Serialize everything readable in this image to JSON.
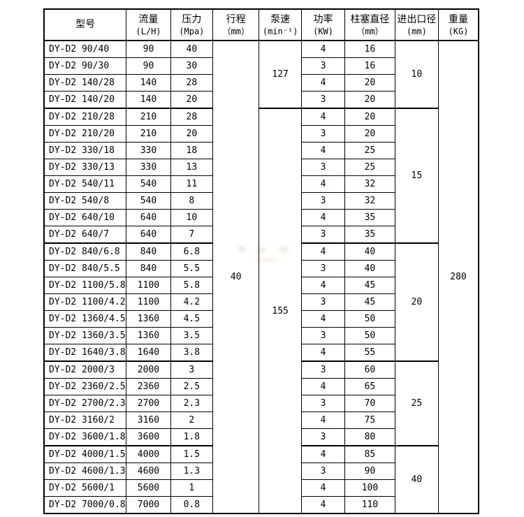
{
  "table": {
    "headers": [
      {
        "title": "型号",
        "unit": ""
      },
      {
        "title": "流量",
        "unit": "(L/H)"
      },
      {
        "title": "压力",
        "unit": "(Mpa)"
      },
      {
        "title": "行程",
        "unit": "（mm）"
      },
      {
        "title": "泵速",
        "unit": "(min⁻¹)"
      },
      {
        "title": "功率",
        "unit": "(KW)"
      },
      {
        "title": "柱塞直径",
        "unit": "（mm）"
      },
      {
        "title": "进出口径",
        "unit": "(mm)"
      },
      {
        "title": "重量",
        "unit": "(KG)"
      }
    ],
    "stroke": {
      "value": "40",
      "rows": 28
    },
    "weight": {
      "value": "280",
      "rows": 28
    },
    "speed_groups": [
      {
        "value": "127",
        "start": 0,
        "rows": 4
      },
      {
        "value": "155",
        "start": 4,
        "rows": 24
      }
    ],
    "port_groups": [
      {
        "value": "10",
        "start": 0,
        "rows": 4
      },
      {
        "value": "15",
        "start": 4,
        "rows": 8
      },
      {
        "value": "20",
        "start": 12,
        "rows": 7
      },
      {
        "value": "25",
        "start": 19,
        "rows": 5
      },
      {
        "value": "40",
        "start": 24,
        "rows": 4
      }
    ],
    "rows": [
      {
        "model": "DY-D2 90/40",
        "flow": "90",
        "pressure": "40",
        "power": "4",
        "plunger": "16"
      },
      {
        "model": "DY-D2 90/30",
        "flow": "90",
        "pressure": "30",
        "power": "3",
        "plunger": "16"
      },
      {
        "model": "DY-D2 140/28",
        "flow": "140",
        "pressure": "28",
        "power": "4",
        "plunger": "20"
      },
      {
        "model": "DY-D2 140/20",
        "flow": "140",
        "pressure": "20",
        "power": "3",
        "plunger": "20"
      },
      {
        "model": "DY-D2 210/28",
        "flow": "210",
        "pressure": "28",
        "power": "4",
        "plunger": "20"
      },
      {
        "model": "DY-D2 210/20",
        "flow": "210",
        "pressure": "20",
        "power": "3",
        "plunger": "20"
      },
      {
        "model": "DY-D2 330/18",
        "flow": "330",
        "pressure": "18",
        "power": "4",
        "plunger": "25"
      },
      {
        "model": "DY-D2 330/13",
        "flow": "330",
        "pressure": "13",
        "power": "3",
        "plunger": "25"
      },
      {
        "model": "DY-D2 540/11",
        "flow": "540",
        "pressure": "11",
        "power": "4",
        "plunger": "32"
      },
      {
        "model": "DY-D2 540/8",
        "flow": "540",
        "pressure": "8",
        "power": "3",
        "plunger": "32"
      },
      {
        "model": "DY-D2 640/10",
        "flow": "640",
        "pressure": "10",
        "power": "4",
        "plunger": "35"
      },
      {
        "model": "DY-D2 640/7",
        "flow": "640",
        "pressure": "7",
        "power": "3",
        "plunger": "35"
      },
      {
        "model": "DY-D2 840/6.8",
        "flow": "840",
        "pressure": "6.8",
        "power": "4",
        "plunger": "40"
      },
      {
        "model": "DY-D2 840/5.5",
        "flow": "840",
        "pressure": "5.5",
        "power": "3",
        "plunger": "40"
      },
      {
        "model": "DY-D2 1100/5.8",
        "flow": "1100",
        "pressure": "5.8",
        "power": "4",
        "plunger": "45"
      },
      {
        "model": "DY-D2 1100/4.2",
        "flow": "1100",
        "pressure": "4.2",
        "power": "3",
        "plunger": "45"
      },
      {
        "model": "DY-D2 1360/4.5",
        "flow": "1360",
        "pressure": "4.5",
        "power": "4",
        "plunger": "50"
      },
      {
        "model": "DY-D2 1360/3.5",
        "flow": "1360",
        "pressure": "3.5",
        "power": "3",
        "plunger": "50"
      },
      {
        "model": "DY-D2 1640/3.8",
        "flow": "1640",
        "pressure": "3.8",
        "power": "4",
        "plunger": "55"
      },
      {
        "model": "DY-D2 2000/3",
        "flow": "2000",
        "pressure": "3",
        "power": "3",
        "plunger": "60"
      },
      {
        "model": "DY-D2 2360/2.5",
        "flow": "2360",
        "pressure": "2.5",
        "power": "4",
        "plunger": "65"
      },
      {
        "model": "DY-D2 2700/2.3",
        "flow": "2700",
        "pressure": "2.3",
        "power": "3",
        "plunger": "70"
      },
      {
        "model": "DY-D2 3160/2",
        "flow": "3160",
        "pressure": "2",
        "power": "4",
        "plunger": "75"
      },
      {
        "model": "DY-D2 3600/1.8",
        "flow": "3600",
        "pressure": "1.8",
        "power": "3",
        "plunger": "80"
      },
      {
        "model": "DY-D2 4000/1.5",
        "flow": "4000",
        "pressure": "1.5",
        "power": "4",
        "plunger": "85"
      },
      {
        "model": "DY-D2 4600/1.3",
        "flow": "4600",
        "pressure": "1.3",
        "power": "3",
        "plunger": "90"
      },
      {
        "model": "DY-D2 5600/1",
        "flow": "5600",
        "pressure": "1",
        "power": "4",
        "plunger": "100"
      },
      {
        "model": "DY-D2 7000/0.8",
        "flow": "7000",
        "pressure": "0.8",
        "power": "4",
        "plunger": "110"
      }
    ]
  }
}
